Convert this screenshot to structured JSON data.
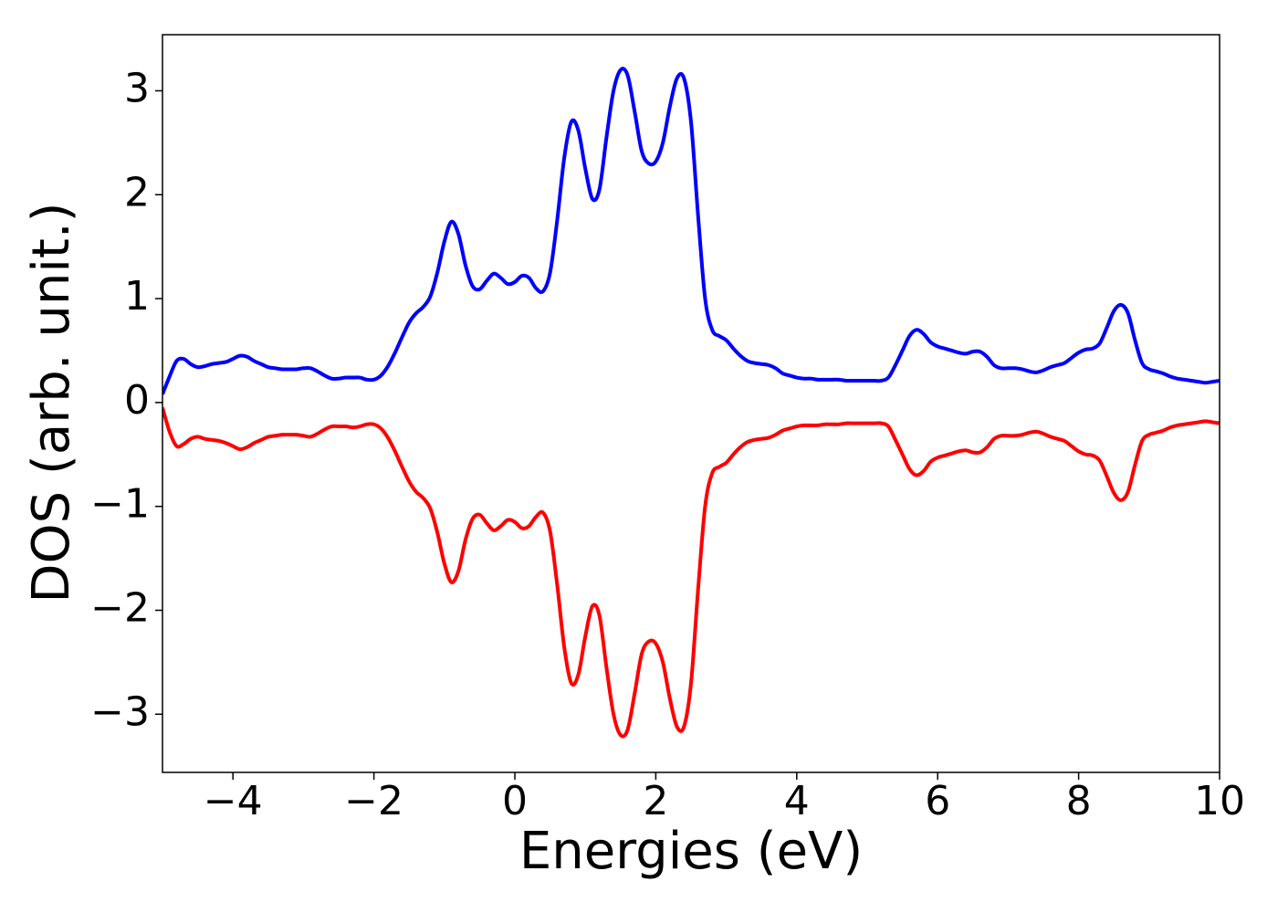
{
  "chart_data": {
    "type": "line",
    "x_label": "Energies (eV)",
    "y_label": "DOS (arb. unit.)",
    "x": [
      -5,
      -4.9,
      -4.8,
      -4.7,
      -4.6,
      -4.5,
      -4.4,
      -4.3,
      -4.2,
      -4.1,
      -4,
      -3.9,
      -3.8,
      -3.7,
      -3.6,
      -3.5,
      -3.4,
      -3.3,
      -3.2,
      -3.1,
      -3,
      -2.9,
      -2.8,
      -2.7,
      -2.6,
      -2.5,
      -2.4,
      -2.3,
      -2.2,
      -2.1,
      -2,
      -1.9,
      -1.8,
      -1.7,
      -1.6,
      -1.5,
      -1.4,
      -1.3,
      -1.2,
      -1.1,
      -1,
      -0.9,
      -0.8,
      -0.7,
      -0.6,
      -0.5,
      -0.4,
      -0.3,
      -0.2,
      -0.1,
      0,
      0.1,
      0.2,
      0.3,
      0.4,
      0.5,
      0.6,
      0.7,
      0.8,
      0.9,
      1,
      1.1,
      1.2,
      1.3,
      1.4,
      1.5,
      1.6,
      1.7,
      1.8,
      1.9,
      2,
      2.1,
      2.2,
      2.3,
      2.4,
      2.5,
      2.6,
      2.7,
      2.8,
      2.9,
      3,
      3.1,
      3.2,
      3.3,
      3.4,
      3.5,
      3.6,
      3.7,
      3.8,
      3.9,
      4,
      4.1,
      4.2,
      4.3,
      4.4,
      4.5,
      4.6,
      4.7,
      4.8,
      4.9,
      5,
      5.1,
      5.2,
      5.3,
      5.4,
      5.5,
      5.6,
      5.7,
      5.8,
      5.9,
      6,
      6.1,
      6.2,
      6.3,
      6.4,
      6.5,
      6.6,
      6.7,
      6.8,
      6.9,
      7,
      7.1,
      7.2,
      7.3,
      7.4,
      7.5,
      7.6,
      7.7,
      7.8,
      7.9,
      8,
      8.1,
      8.2,
      8.3,
      8.4,
      8.5,
      8.6,
      8.7,
      8.8,
      8.9,
      9,
      9.1,
      9.2,
      9.3,
      9.4,
      9.5,
      9.6,
      9.7,
      9.8,
      9.9,
      10
    ],
    "series": [
      {
        "color": "#0000ff",
        "values": [
          0.08,
          0.25,
          0.4,
          0.42,
          0.37,
          0.34,
          0.35,
          0.37,
          0.38,
          0.39,
          0.42,
          0.45,
          0.44,
          0.4,
          0.37,
          0.34,
          0.33,
          0.32,
          0.32,
          0.32,
          0.33,
          0.33,
          0.3,
          0.26,
          0.23,
          0.23,
          0.24,
          0.24,
          0.24,
          0.22,
          0.22,
          0.26,
          0.35,
          0.48,
          0.63,
          0.77,
          0.86,
          0.92,
          1.02,
          1.25,
          1.55,
          1.74,
          1.62,
          1.32,
          1.12,
          1.09,
          1.17,
          1.24,
          1.2,
          1.14,
          1.16,
          1.22,
          1.2,
          1.1,
          1.07,
          1.25,
          1.75,
          2.35,
          2.7,
          2.62,
          2.25,
          1.96,
          2.05,
          2.55,
          3.0,
          3.2,
          3.15,
          2.8,
          2.42,
          2.3,
          2.32,
          2.5,
          2.85,
          3.12,
          3.12,
          2.7,
          1.8,
          1.0,
          0.7,
          0.64,
          0.6,
          0.52,
          0.45,
          0.4,
          0.38,
          0.37,
          0.36,
          0.33,
          0.28,
          0.26,
          0.24,
          0.23,
          0.23,
          0.22,
          0.22,
          0.22,
          0.22,
          0.21,
          0.21,
          0.21,
          0.21,
          0.21,
          0.21,
          0.24,
          0.36,
          0.5,
          0.64,
          0.7,
          0.66,
          0.58,
          0.54,
          0.52,
          0.5,
          0.48,
          0.47,
          0.49,
          0.49,
          0.44,
          0.36,
          0.33,
          0.33,
          0.33,
          0.32,
          0.3,
          0.29,
          0.31,
          0.34,
          0.36,
          0.38,
          0.43,
          0.48,
          0.51,
          0.52,
          0.57,
          0.72,
          0.88,
          0.94,
          0.86,
          0.6,
          0.38,
          0.32,
          0.3,
          0.28,
          0.25,
          0.23,
          0.22,
          0.21,
          0.2,
          0.19,
          0.2,
          0.21
        ]
      },
      {
        "color": "#ff0000",
        "values": [
          -0.05,
          -0.28,
          -0.42,
          -0.4,
          -0.35,
          -0.33,
          -0.35,
          -0.36,
          -0.37,
          -0.39,
          -0.42,
          -0.45,
          -0.43,
          -0.39,
          -0.36,
          -0.33,
          -0.32,
          -0.31,
          -0.31,
          -0.31,
          -0.32,
          -0.33,
          -0.3,
          -0.26,
          -0.23,
          -0.23,
          -0.23,
          -0.24,
          -0.23,
          -0.21,
          -0.21,
          -0.25,
          -0.34,
          -0.47,
          -0.62,
          -0.76,
          -0.86,
          -0.92,
          -1.02,
          -1.25,
          -1.55,
          -1.73,
          -1.62,
          -1.32,
          -1.12,
          -1.08,
          -1.16,
          -1.23,
          -1.19,
          -1.13,
          -1.15,
          -1.21,
          -1.19,
          -1.1,
          -1.06,
          -1.24,
          -1.75,
          -2.35,
          -2.7,
          -2.62,
          -2.25,
          -1.96,
          -2.05,
          -2.55,
          -3.0,
          -3.2,
          -3.15,
          -2.8,
          -2.42,
          -2.3,
          -2.32,
          -2.5,
          -2.85,
          -3.12,
          -3.12,
          -2.7,
          -1.8,
          -1.0,
          -0.68,
          -0.62,
          -0.58,
          -0.5,
          -0.43,
          -0.38,
          -0.36,
          -0.35,
          -0.34,
          -0.31,
          -0.27,
          -0.25,
          -0.23,
          -0.22,
          -0.22,
          -0.22,
          -0.21,
          -0.21,
          -0.21,
          -0.2,
          -0.2,
          -0.2,
          -0.2,
          -0.2,
          -0.2,
          -0.23,
          -0.36,
          -0.5,
          -0.64,
          -0.7,
          -0.66,
          -0.57,
          -0.53,
          -0.51,
          -0.49,
          -0.47,
          -0.46,
          -0.48,
          -0.48,
          -0.43,
          -0.35,
          -0.32,
          -0.32,
          -0.32,
          -0.31,
          -0.29,
          -0.28,
          -0.3,
          -0.33,
          -0.35,
          -0.37,
          -0.42,
          -0.47,
          -0.5,
          -0.51,
          -0.56,
          -0.71,
          -0.87,
          -0.94,
          -0.86,
          -0.6,
          -0.37,
          -0.31,
          -0.29,
          -0.27,
          -0.24,
          -0.22,
          -0.21,
          -0.2,
          -0.19,
          -0.18,
          -0.19,
          -0.2
        ]
      }
    ],
    "xlim": [
      -5,
      10
    ],
    "ylim": [
      -3.56,
      3.54
    ],
    "xticks": [
      {
        "value": -4,
        "label": "−4"
      },
      {
        "value": -2,
        "label": "−2"
      },
      0,
      2,
      4,
      6,
      8,
      10
    ],
    "yticks": [
      {
        "value": -3,
        "label": "−3"
      },
      {
        "value": -2,
        "label": "−2"
      },
      {
        "value": -1,
        "label": "−1"
      },
      0,
      1,
      2,
      3
    ],
    "grid": false
  }
}
